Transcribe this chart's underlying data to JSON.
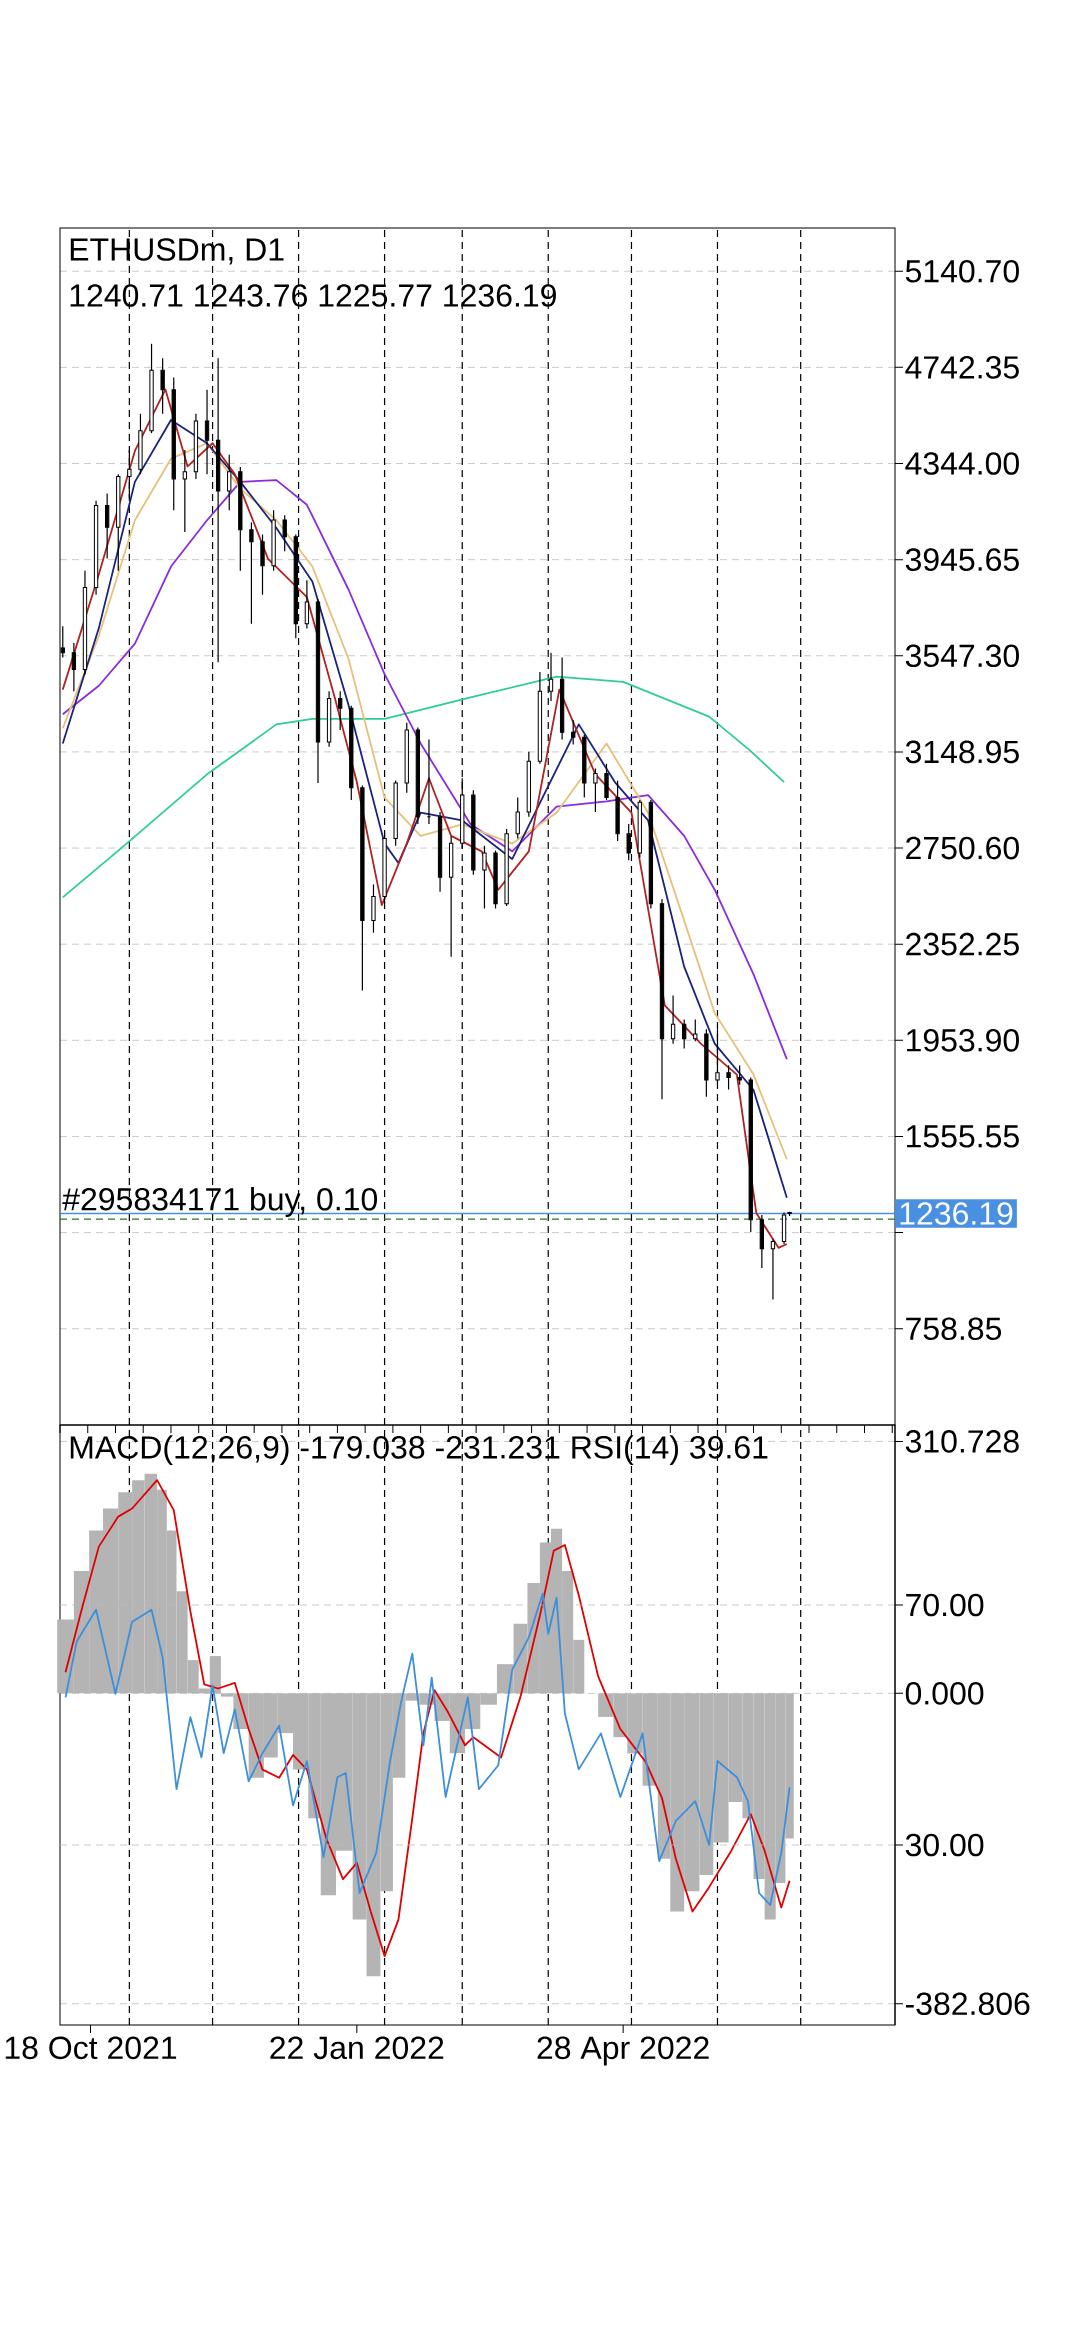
{
  "chart_data": [
    {
      "type": "candlestick",
      "title": "ETHUSDm, D1",
      "subtitle": "1240.71 1243.76 1225.77 1236.19",
      "x": [
        "2021-10-08",
        "2021-10-12",
        "2021-10-16",
        "2021-10-20",
        "2021-10-24",
        "2021-10-28",
        "2021-11-01",
        "2021-11-05",
        "2021-11-09",
        "2021-11-13",
        "2021-11-17",
        "2021-11-21",
        "2021-11-25",
        "2021-11-29",
        "2021-12-03",
        "2021-12-07",
        "2021-12-11",
        "2021-12-15",
        "2021-12-19",
        "2021-12-23",
        "2021-12-27",
        "2021-12-31",
        "2022-01-04",
        "2022-01-08",
        "2022-01-12",
        "2022-01-16",
        "2022-01-20",
        "2022-01-24",
        "2022-01-28",
        "2022-02-01",
        "2022-02-05",
        "2022-02-09",
        "2022-02-13",
        "2022-02-17",
        "2022-02-21",
        "2022-02-25",
        "2022-03-01",
        "2022-03-05",
        "2022-03-09",
        "2022-03-13",
        "2022-03-17",
        "2022-03-21",
        "2022-03-25",
        "2022-03-29",
        "2022-04-02",
        "2022-04-06",
        "2022-04-10",
        "2022-04-14",
        "2022-04-18",
        "2022-04-22",
        "2022-04-26",
        "2022-04-30",
        "2022-05-04",
        "2022-05-08",
        "2022-05-12",
        "2022-05-16",
        "2022-05-20",
        "2022-05-24",
        "2022-05-28",
        "2022-06-01",
        "2022-06-05",
        "2022-06-09",
        "2022-06-13",
        "2022-06-17",
        "2022-06-21",
        "2022-06-25",
        "2022-06-27"
      ],
      "ohlc": [
        [
          3580,
          3670,
          3540,
          3560
        ],
        [
          3560,
          3600,
          3400,
          3490
        ],
        [
          3490,
          3900,
          3470,
          3830
        ],
        [
          3830,
          4190,
          3800,
          4170
        ],
        [
          4170,
          4220,
          3950,
          4080
        ],
        [
          4080,
          4300,
          3900,
          4290
        ],
        [
          4290,
          4400,
          4200,
          4320
        ],
        [
          4320,
          4550,
          4300,
          4480
        ],
        [
          4480,
          4840,
          4470,
          4730
        ],
        [
          4730,
          4780,
          4550,
          4650
        ],
        [
          4650,
          4700,
          4150,
          4280
        ],
        [
          4280,
          4400,
          4060,
          4310
        ],
        [
          4310,
          4550,
          4280,
          4520
        ],
        [
          4520,
          4650,
          4300,
          4440
        ],
        [
          4440,
          4780,
          3520,
          4230
        ],
        [
          4230,
          4380,
          4150,
          4310
        ],
        [
          4310,
          4330,
          3900,
          4070
        ],
        [
          4070,
          4100,
          3680,
          4020
        ],
        [
          4020,
          4050,
          3800,
          3920
        ],
        [
          3920,
          4150,
          3900,
          4110
        ],
        [
          4110,
          4130,
          3980,
          4040
        ],
        [
          4040,
          4050,
          3620,
          3680
        ],
        [
          3680,
          3860,
          3660,
          3770
        ],
        [
          3770,
          3780,
          3020,
          3190
        ],
        [
          3190,
          3400,
          3170,
          3370
        ],
        [
          3370,
          3400,
          3240,
          3330
        ],
        [
          3330,
          3340,
          2950,
          3000
        ],
        [
          3000,
          3010,
          2160,
          2450
        ],
        [
          2450,
          2600,
          2400,
          2550
        ],
        [
          2550,
          2820,
          2520,
          2790
        ],
        [
          2790,
          3030,
          2760,
          3020
        ],
        [
          3020,
          3270,
          2980,
          3240
        ],
        [
          3240,
          3250,
          2850,
          2880
        ],
        [
          2880,
          3200,
          2850,
          2880
        ],
        [
          2880,
          2900,
          2570,
          2630
        ],
        [
          2630,
          2800,
          2300,
          2770
        ],
        [
          2770,
          3040,
          2750,
          2970
        ],
        [
          2970,
          2990,
          2640,
          2660
        ],
        [
          2660,
          2760,
          2500,
          2730
        ],
        [
          2730,
          2740,
          2500,
          2520
        ],
        [
          2520,
          2830,
          2510,
          2810
        ],
        [
          2810,
          2960,
          2790,
          2900
        ],
        [
          2900,
          3150,
          2880,
          3110
        ],
        [
          3110,
          3480,
          3100,
          3400
        ],
        [
          3400,
          3560,
          3360,
          3450
        ],
        [
          3450,
          3540,
          3200,
          3230
        ],
        [
          3230,
          3280,
          3180,
          3210
        ],
        [
          3210,
          3220,
          2960,
          3020
        ],
        [
          3020,
          3080,
          2900,
          3060
        ],
        [
          3060,
          3100,
          2950,
          2960
        ],
        [
          2960,
          3030,
          2780,
          2810
        ],
        [
          2810,
          2850,
          2700,
          2730
        ],
        [
          2730,
          2950,
          2710,
          2940
        ],
        [
          2940,
          2950,
          2500,
          2520
        ],
        [
          2520,
          2540,
          1710,
          1960
        ],
        [
          1960,
          2140,
          1940,
          2020
        ],
        [
          2020,
          2040,
          1920,
          1960
        ],
        [
          1960,
          2040,
          1950,
          1980
        ],
        [
          1980,
          2000,
          1720,
          1790
        ],
        [
          1790,
          2000,
          1780,
          1820
        ],
        [
          1820,
          1850,
          1750,
          1800
        ],
        [
          1800,
          1850,
          1770,
          1790
        ],
        [
          1790,
          1800,
          1160,
          1210
        ],
        [
          1210,
          1230,
          1010,
          1090
        ],
        [
          1090,
          1130,
          880,
          1120
        ],
        [
          1120,
          1240,
          1110,
          1230
        ],
        [
          1240.71,
          1243.76,
          1225.77,
          1236.19
        ]
      ],
      "color": "#000000",
      "series": [
        {
          "type": "line",
          "color": "#2ecc9a",
          "x": [
            "2021-10-08",
            "2021-10-31",
            "2021-11-29",
            "2021-12-24",
            "2022-01-06",
            "2022-02-01",
            "2022-03-04",
            "2022-04-04",
            "2022-04-28",
            "2022-05-29",
            "2022-06-13",
            "2022-06-25"
          ],
          "values": [
            2546,
            2769,
            3056,
            3263,
            3286,
            3286,
            3375,
            3461,
            3439,
            3295,
            3152,
            3024
          ]
        },
        {
          "type": "line",
          "color": "#8a2be2",
          "x": [
            "2021-10-08",
            "2021-10-21",
            "2021-11-03",
            "2021-11-16",
            "2021-11-29",
            "2021-12-11",
            "2021-12-24",
            "2022-01-04",
            "2022-01-19",
            "2022-02-01",
            "2022-02-14",
            "2022-03-04",
            "2022-03-19",
            "2022-04-04",
            "2022-04-22",
            "2022-05-07",
            "2022-05-20",
            "2022-05-31",
            "2022-06-14",
            "2022-06-26"
          ],
          "values": [
            3305,
            3423,
            3598,
            3917,
            4109,
            4268,
            4275,
            4173,
            3822,
            3471,
            3184,
            2849,
            2737,
            2922,
            2944,
            2970,
            2801,
            2578,
            2227,
            1876
          ]
        },
        {
          "type": "line",
          "color": "#e8c07a",
          "x": [
            "2021-10-08",
            "2021-10-21",
            "2021-11-03",
            "2021-11-16",
            "2021-11-29",
            "2021-12-11",
            "2021-12-24",
            "2022-01-06",
            "2022-01-19",
            "2022-02-01",
            "2022-02-14",
            "2022-03-01",
            "2022-03-19",
            "2022-04-04",
            "2022-04-22",
            "2022-05-07",
            "2022-05-20",
            "2022-05-31",
            "2022-06-14",
            "2022-06-26"
          ],
          "values": [
            3247,
            3630,
            4109,
            4364,
            4428,
            4240,
            4109,
            3917,
            3535,
            2960,
            2801,
            2849,
            2769,
            2897,
            3184,
            2897,
            2450,
            2067,
            1812,
            1461
          ]
        },
        {
          "type": "line",
          "color": "#1a237e",
          "x": [
            "2021-10-08",
            "2021-10-21",
            "2021-11-03",
            "2021-11-16",
            "2021-11-29",
            "2021-12-11",
            "2021-12-24",
            "2022-01-06",
            "2022-01-19",
            "2022-02-01",
            "2022-02-06",
            "2022-02-14",
            "2022-03-01",
            "2022-03-19",
            "2022-04-12",
            "2022-04-25",
            "2022-05-07",
            "2022-05-20",
            "2022-05-31",
            "2022-06-14",
            "2022-06-26"
          ],
          "values": [
            3184,
            3662,
            4268,
            4524,
            4428,
            4268,
            4077,
            3854,
            3343,
            2769,
            2689,
            2897,
            2865,
            2705,
            3263,
            3024,
            2865,
            2259,
            1940,
            1748,
            1302
          ]
        },
        {
          "type": "line",
          "color": "#b22222",
          "x": [
            "2021-10-08",
            "2021-10-21",
            "2021-11-03",
            "2021-11-14",
            "2021-11-22",
            "2021-12-01",
            "2021-12-09",
            "2021-12-21",
            "2022-01-04",
            "2022-01-14",
            "2022-01-22",
            "2022-01-31",
            "2022-02-09",
            "2022-02-17",
            "2022-02-25",
            "2022-03-08",
            "2022-03-14",
            "2022-03-25",
            "2022-04-05",
            "2022-04-18",
            "2022-05-01",
            "2022-05-13",
            "2022-05-26",
            "2022-06-08",
            "2022-06-15",
            "2022-06-23",
            "2022-06-26"
          ],
          "values": [
            3407,
            3885,
            4396,
            4651,
            4332,
            4428,
            4300,
            3949,
            3790,
            3375,
            3024,
            2514,
            2769,
            3040,
            2801,
            2737,
            2578,
            2737,
            3407,
            3056,
            2897,
            2099,
            1940,
            1812,
            1238,
            1094,
            1110
          ]
        }
      ],
      "xlim": [
        "2021-10-07",
        "2022-08-04"
      ],
      "ylim": [
        360,
        5320
      ],
      "yticks": [
        {
          "value": 5140.7,
          "label": "5140.70"
        },
        {
          "value": 4742.35,
          "label": "4742.35"
        },
        {
          "value": 4344,
          "label": "4344.00"
        },
        {
          "value": 3945.65,
          "label": "3945.65"
        },
        {
          "value": 3547.3,
          "label": "3547.30"
        },
        {
          "value": 3148.95,
          "label": "3148.95"
        },
        {
          "value": 2750.6,
          "label": "2750.60"
        },
        {
          "value": 2352.25,
          "label": "2352.25"
        },
        {
          "value": 1953.9,
          "label": "1953.90"
        },
        {
          "value": 1555.55,
          "label": "1555.55"
        },
        {
          "value": 1157.2,
          "label": null
        },
        {
          "value": 758.85,
          "label": "758.85"
        }
      ],
      "grid": "y",
      "tick_labels": "y",
      "ref_lines": [
        {
          "axis": "x",
          "value": "2021-11-01",
          "color": "#000000",
          "line_style": "dashed"
        },
        {
          "axis": "x",
          "value": "2021-12-01",
          "color": "#000000",
          "line_style": "dashed"
        },
        {
          "axis": "x",
          "value": "2022-01-01",
          "color": "#000000",
          "line_style": "dashed"
        },
        {
          "axis": "x",
          "value": "2022-02-01",
          "color": "#000000",
          "line_style": "dashed"
        },
        {
          "axis": "x",
          "value": "2022-03-01",
          "color": "#000000",
          "line_style": "dashed"
        },
        {
          "axis": "x",
          "value": "2022-04-01",
          "color": "#000000",
          "line_style": "dashed"
        },
        {
          "axis": "x",
          "value": "2022-05-01",
          "color": "#000000",
          "line_style": "dashed"
        },
        {
          "axis": "x",
          "value": "2022-06-01",
          "color": "#000000",
          "line_style": "dashed"
        },
        {
          "axis": "x",
          "value": "2022-07-01",
          "color": "#000000",
          "line_style": "dashed"
        },
        {
          "axis": "y",
          "value": 1236.19,
          "label": "1236.19",
          "color": "#4a90e2",
          "line_style": "solid"
        },
        {
          "axis": "y",
          "value": 1213,
          "label": "#295834171 buy, 0.10",
          "color": "#1e7b1e",
          "line_style": "dashed"
        }
      ]
    },
    {
      "type": "bar",
      "title": "MACD(12,26,9) -179.038 -231.231 RSI(14) 39.61",
      "series": [
        {
          "type": "bar",
          "color": "#b4b4b4",
          "x": [
            "2021-10-09",
            "2021-10-15",
            "2021-10-20",
            "2021-10-25",
            "2021-10-31",
            "2021-11-04",
            "2021-11-09",
            "2021-11-13",
            "2021-11-16",
            "2021-11-20",
            "2021-11-24",
            "2021-11-28",
            "2021-12-02",
            "2021-12-06",
            "2021-12-11",
            "2021-12-17",
            "2021-12-22",
            "2021-12-27",
            "2022-01-02",
            "2022-01-07",
            "2022-01-11",
            "2022-01-18",
            "2022-01-23",
            "2022-01-28",
            "2022-02-02",
            "2022-02-06",
            "2022-02-11",
            "2022-02-16",
            "2022-02-22",
            "2022-02-27",
            "2022-03-05",
            "2022-03-10",
            "2022-03-17",
            "2022-03-22",
            "2022-03-27",
            "2022-03-31",
            "2022-04-04",
            "2022-04-08",
            "2022-04-12",
            "2022-04-16",
            "2022-04-22",
            "2022-04-27",
            "2022-05-02",
            "2022-05-08",
            "2022-05-13",
            "2022-05-17",
            "2022-05-23",
            "2022-05-28",
            "2022-06-02",
            "2022-06-08",
            "2022-06-12",
            "2022-06-16",
            "2022-06-20",
            "2022-06-24",
            "2022-06-27"
          ],
          "values": [
            91,
            151,
            201,
            228,
            248,
            263,
            271,
            251,
            201,
            126,
            41,
            6,
            46,
            -4,
            -44,
            -104,
            -79,
            -49,
            -94,
            -154,
            -249,
            -194,
            -279,
            -349,
            -244,
            -104,
            -9,
            -14,
            -34,
            -74,
            -44,
            -14,
            36,
            86,
            136,
            186,
            203,
            151,
            66,
            null,
            -29,
            -54,
            -74,
            -114,
            -204,
            -269,
            -244,
            -224,
            -184,
            -134,
            -154,
            -229,
            -279,
            -234,
            -179.038
          ]
        },
        {
          "type": "line",
          "color": "#e00000",
          "x": [
            "2021-10-09",
            "2021-10-15",
            "2021-10-21",
            "2021-10-28",
            "2021-11-02",
            "2021-11-11",
            "2021-11-17",
            "2021-11-23",
            "2021-11-28",
            "2021-12-03",
            "2021-12-09",
            "2021-12-14",
            "2021-12-19",
            "2021-12-25",
            "2021-12-30",
            "2022-01-04",
            "2022-01-11",
            "2022-01-17",
            "2022-01-22",
            "2022-01-27",
            "2022-02-01",
            "2022-02-06",
            "2022-02-11",
            "2022-02-15",
            "2022-02-19",
            "2022-02-24",
            "2022-03-02",
            "2022-03-05",
            "2022-03-15",
            "2022-03-22",
            "2022-03-29",
            "2022-04-03",
            "2022-04-07",
            "2022-04-12",
            "2022-04-19",
            "2022-04-27",
            "2022-05-06",
            "2022-05-12",
            "2022-05-17",
            "2022-05-23",
            "2022-05-29",
            "2022-06-06",
            "2022-06-13",
            "2022-06-18",
            "2022-06-24",
            "2022-06-27"
          ],
          "values": [
            26,
            106,
            181,
            218,
            228,
            263,
            226,
            101,
            11,
            6,
            13,
            -44,
            -94,
            -104,
            -76,
            -94,
            -179,
            -229,
            -209,
            -269,
            -324,
            -279,
            -154,
            -49,
            4,
            -24,
            -64,
            -54,
            -79,
            -4,
            96,
            176,
            183,
            121,
            21,
            -44,
            -84,
            -129,
            -204,
            -269,
            -239,
            -194,
            -149,
            -194,
            -264,
            -231.231
          ]
        },
        {
          "type": "line",
          "color": "#3d8fdc",
          "axis": "y2",
          "x": [
            "2021-10-09",
            "2021-10-13",
            "2021-10-20",
            "2021-10-27",
            "2021-11-02",
            "2021-11-09",
            "2021-11-13",
            "2021-11-18",
            "2021-11-23",
            "2021-11-27",
            "2021-12-01",
            "2021-12-05",
            "2021-12-09",
            "2021-12-14",
            "2021-12-19",
            "2021-12-25",
            "2021-12-30",
            "2022-01-04",
            "2022-01-10",
            "2022-01-15",
            "2022-01-18",
            "2022-01-23",
            "2022-01-29",
            "2022-02-03",
            "2022-02-07",
            "2022-02-11",
            "2022-02-15",
            "2022-02-18",
            "2022-02-23",
            "2022-03-03",
            "2022-03-07",
            "2022-03-14",
            "2022-03-19",
            "2022-03-25",
            "2022-03-30",
            "2022-04-01",
            "2022-04-04",
            "2022-04-07",
            "2022-04-12",
            "2022-04-20",
            "2022-04-27",
            "2022-05-05",
            "2022-05-11",
            "2022-05-17",
            "2022-05-24",
            "2022-05-29",
            "2022-06-01",
            "2022-06-08",
            "2022-06-12",
            "2022-06-16",
            "2022-06-20",
            "2022-06-24",
            "2022-06-27"
          ],
          "values": [
            54.6,
            63.9,
            69.2,
            55.2,
            67.2,
            69.2,
            61.2,
            39.3,
            51.3,
            44.6,
            56.6,
            45.3,
            52.6,
            40.6,
            45.3,
            49.9,
            36.6,
            44.0,
            28.0,
            41.3,
            42.0,
            22.0,
            28.7,
            44.0,
            53.9,
            61.9,
            46.6,
            57.9,
            38.0,
            54.6,
            39.3,
            43.3,
            59.2,
            64.6,
            71.9,
            65.2,
            71.2,
            51.9,
            42.6,
            48.6,
            38.0,
            48.6,
            27.3,
            34.0,
            37.3,
            30.0,
            44.0,
            41.3,
            37.3,
            22.0,
            20.0,
            28.7,
            39.61
          ]
        }
      ],
      "xlim": [
        "2021-10-07",
        "2022-08-04"
      ],
      "xticks": [
        {
          "value": "2021-10-18",
          "label": "18 Oct 2021"
        },
        {
          "value": "2022-01-22",
          "label": "22 Jan 2022"
        },
        {
          "value": "2022-04-28",
          "label": "28 Apr 2022"
        }
      ],
      "ylim": [
        -409,
        331
      ],
      "yticks": [
        310.728,
        {
          "value": 0,
          "label": "0.000"
        },
        -382.806
      ],
      "y2lim": [
        0,
        100
      ],
      "y2ticks": [
        {
          "value": 70,
          "label": "70.00"
        },
        {
          "value": 30,
          "label": "30.00"
        }
      ],
      "ref_lines": [
        {
          "axis": "x",
          "value": "2021-11-01",
          "color": "#000000",
          "line_style": "dashed"
        },
        {
          "axis": "x",
          "value": "2021-12-01",
          "color": "#000000",
          "line_style": "dashed"
        },
        {
          "axis": "x",
          "value": "2022-01-01",
          "color": "#000000",
          "line_style": "dashed"
        },
        {
          "axis": "x",
          "value": "2022-02-01",
          "color": "#000000",
          "line_style": "dashed"
        },
        {
          "axis": "x",
          "value": "2022-03-01",
          "color": "#000000",
          "line_style": "dashed"
        },
        {
          "axis": "x",
          "value": "2022-04-01",
          "color": "#000000",
          "line_style": "dashed"
        },
        {
          "axis": "x",
          "value": "2022-05-01",
          "color": "#000000",
          "line_style": "dashed"
        },
        {
          "axis": "x",
          "value": "2022-06-01",
          "color": "#000000",
          "line_style": "dashed"
        },
        {
          "axis": "x",
          "value": "2022-07-01",
          "color": "#000000",
          "line_style": "dashed"
        }
      ],
      "grid": "y"
    }
  ]
}
